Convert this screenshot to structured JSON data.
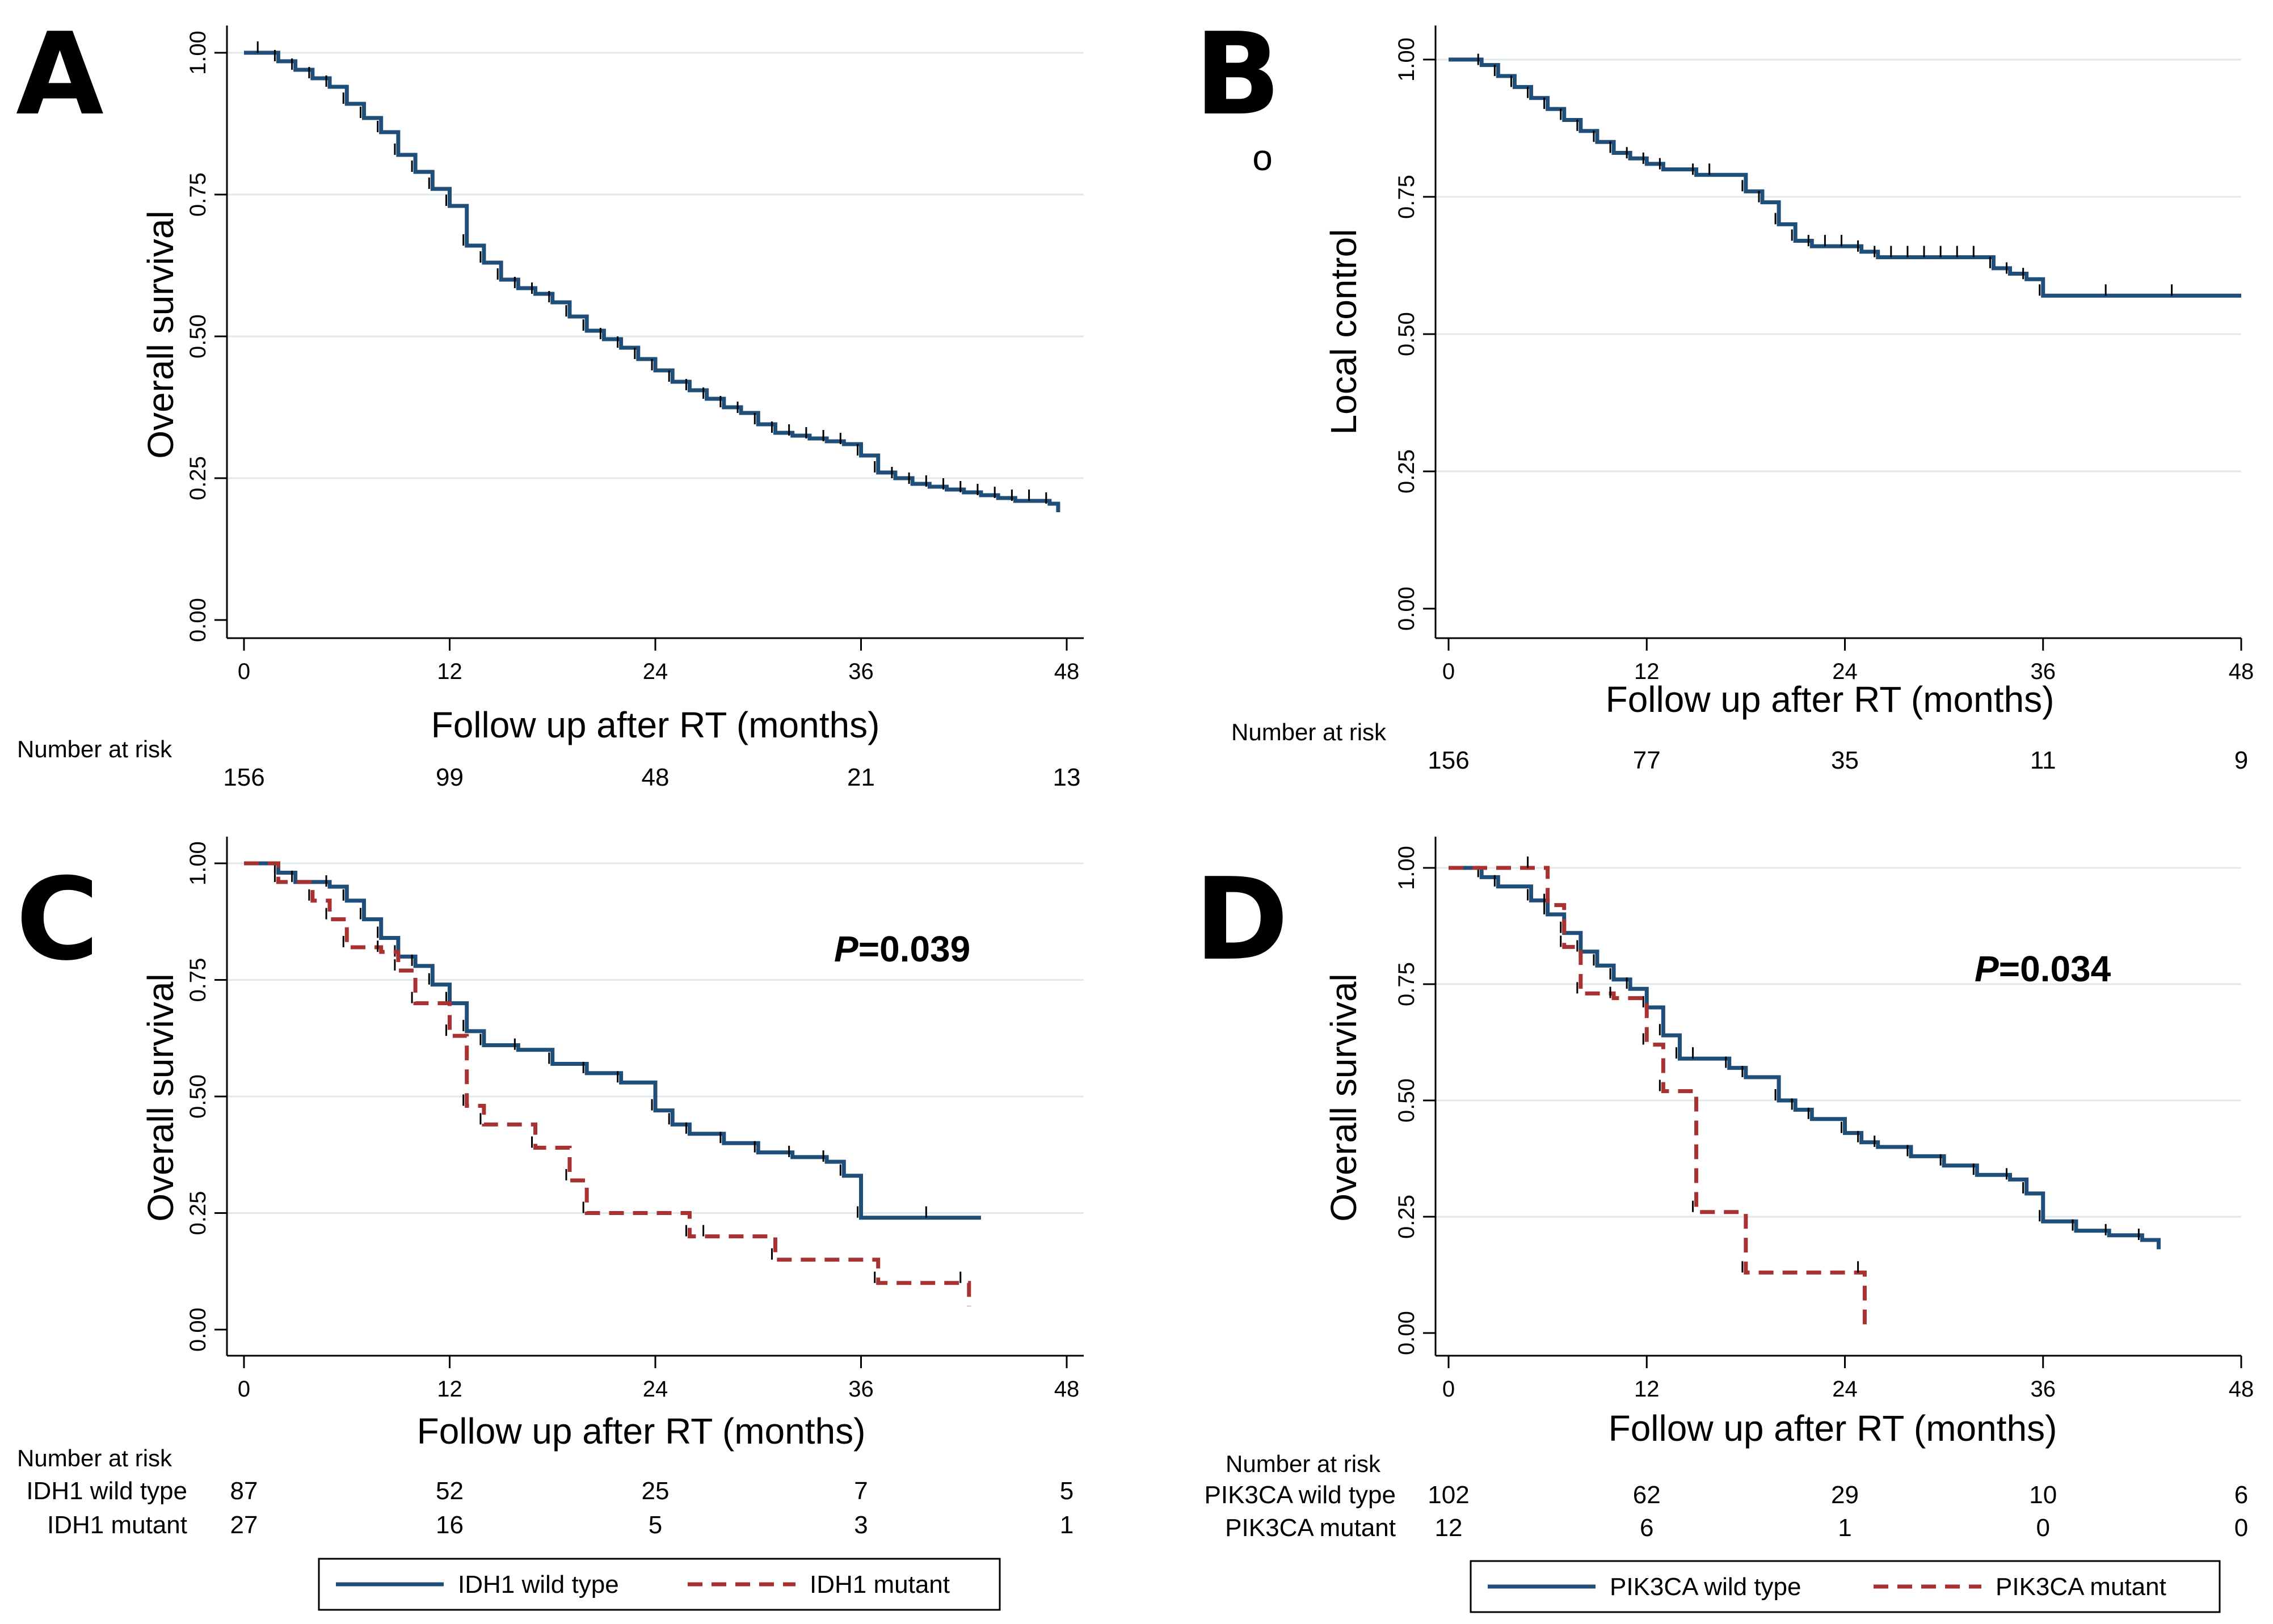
{
  "colors": {
    "wild": "#1f4e79",
    "mutant": "#a83232",
    "grid": "#dfe9e9",
    "axis": "#000000"
  },
  "chart_data": [
    {
      "id": "A",
      "panel_letter": "A",
      "type": "line",
      "subtype": "kaplan-meier",
      "xlabel": "Follow up after RT (months)",
      "ylabel": "Overall survival",
      "xlim": [
        0,
        48
      ],
      "ylim": [
        0,
        1
      ],
      "x_ticks": [
        "0",
        "12",
        "24",
        "36",
        "48"
      ],
      "y_ticks": [
        "0.00",
        "0.25",
        "0.50",
        "0.75",
        "1.00"
      ],
      "grid": true,
      "risk_title": "Number at risk",
      "risk_rows": [
        {
          "label": "",
          "values": [
            "156",
            "99",
            "48",
            "21",
            "13"
          ]
        }
      ],
      "series": [
        {
          "name": "Overall",
          "style": "solid",
          "color": "#1f4e79",
          "x": [
            0,
            1,
            2,
            3,
            4,
            5,
            6,
            7,
            8,
            9,
            10,
            11,
            12,
            13,
            14,
            15,
            16,
            17,
            18,
            19,
            20,
            21,
            22,
            23,
            24,
            25,
            26,
            27,
            28,
            29,
            30,
            31,
            32,
            33,
            34,
            35,
            36,
            37,
            38,
            39,
            40,
            41,
            42,
            43,
            44,
            45,
            46,
            47,
            47.5
          ],
          "y": [
            1.0,
            1.0,
            0.985,
            0.97,
            0.955,
            0.94,
            0.91,
            0.885,
            0.86,
            0.82,
            0.79,
            0.76,
            0.73,
            0.66,
            0.63,
            0.6,
            0.585,
            0.575,
            0.56,
            0.535,
            0.51,
            0.495,
            0.48,
            0.46,
            0.44,
            0.42,
            0.405,
            0.39,
            0.375,
            0.365,
            0.345,
            0.33,
            0.325,
            0.32,
            0.315,
            0.31,
            0.29,
            0.26,
            0.25,
            0.24,
            0.235,
            0.23,
            0.225,
            0.22,
            0.215,
            0.21,
            0.21,
            0.205,
            0.19
          ]
        }
      ]
    },
    {
      "id": "B",
      "panel_letter": "B",
      "type": "line",
      "subtype": "kaplan-meier",
      "xlabel": "Follow up after RT (months)",
      "ylabel": "Local control",
      "xlim": [
        0,
        48
      ],
      "ylim": [
        0,
        1
      ],
      "x_ticks": [
        "0",
        "12",
        "24",
        "36",
        "48"
      ],
      "y_ticks": [
        "0.00",
        "0.25",
        "0.50",
        "0.75",
        "1.00"
      ],
      "grid": true,
      "annotation": "o",
      "risk_title": "Number at risk",
      "risk_rows": [
        {
          "label": "",
          "values": [
            "156",
            "77",
            "35",
            "11",
            "9"
          ]
        }
      ],
      "series": [
        {
          "name": "Local control",
          "style": "solid",
          "color": "#1f4e79",
          "x": [
            0,
            2,
            3,
            4,
            5,
            6,
            7,
            8,
            9,
            10,
            11,
            12,
            13,
            15,
            16,
            18,
            19,
            20,
            21,
            22,
            23,
            24,
            25,
            26,
            27,
            28,
            29,
            30,
            31,
            32,
            33,
            34,
            35,
            36,
            40,
            44,
            48
          ],
          "y": [
            1.0,
            0.99,
            0.97,
            0.95,
            0.93,
            0.91,
            0.89,
            0.87,
            0.85,
            0.83,
            0.82,
            0.81,
            0.8,
            0.79,
            0.79,
            0.76,
            0.74,
            0.7,
            0.67,
            0.66,
            0.66,
            0.66,
            0.65,
            0.64,
            0.64,
            0.64,
            0.64,
            0.64,
            0.64,
            0.64,
            0.62,
            0.61,
            0.6,
            0.57,
            0.57,
            0.57,
            0.57
          ]
        }
      ]
    },
    {
      "id": "C",
      "panel_letter": "C",
      "type": "line",
      "subtype": "kaplan-meier",
      "xlabel": "Follow up after RT (months)",
      "ylabel": "Overall survival",
      "xlim": [
        0,
        48
      ],
      "ylim": [
        0,
        1
      ],
      "x_ticks": [
        "0",
        "12",
        "24",
        "36",
        "48"
      ],
      "y_ticks": [
        "0.00",
        "0.25",
        "0.50",
        "0.75",
        "1.00"
      ],
      "grid": true,
      "p_value": {
        "label": "P",
        "text": "=0.039"
      },
      "risk_title": "Number at risk",
      "risk_rows": [
        {
          "label": "IDH1 wild type",
          "values": [
            "87",
            "52",
            "25",
            "7",
            "5"
          ]
        },
        {
          "label": "IDH1 mutant",
          "values": [
            "27",
            "16",
            "5",
            "3",
            "1"
          ]
        }
      ],
      "legend": [
        "IDH1 wild type",
        "IDH1 mutant"
      ],
      "series": [
        {
          "name": "IDH1 wild type",
          "style": "solid",
          "color": "#1f4e79",
          "x": [
            0,
            2,
            3,
            5,
            6,
            7,
            8,
            9,
            10,
            11,
            12,
            13,
            14,
            16,
            18,
            20,
            22,
            24,
            25,
            26,
            28,
            30,
            32,
            34,
            35,
            36,
            40,
            43
          ],
          "y": [
            1.0,
            0.98,
            0.96,
            0.95,
            0.92,
            0.88,
            0.84,
            0.8,
            0.78,
            0.74,
            0.7,
            0.64,
            0.61,
            0.6,
            0.57,
            0.55,
            0.53,
            0.47,
            0.44,
            0.42,
            0.4,
            0.38,
            0.37,
            0.36,
            0.33,
            0.24,
            0.24,
            0.24
          ]
        },
        {
          "name": "IDH1 mutant",
          "style": "dashed",
          "color": "#a83232",
          "x": [
            0,
            2,
            4,
            5,
            6,
            8,
            9,
            10,
            12,
            13,
            14,
            17,
            19,
            20,
            26,
            27,
            31,
            37,
            42,
            42.3
          ],
          "y": [
            1.0,
            0.96,
            0.92,
            0.88,
            0.82,
            0.81,
            0.77,
            0.7,
            0.63,
            0.48,
            0.44,
            0.39,
            0.32,
            0.25,
            0.2,
            0.2,
            0.15,
            0.1,
            0.1,
            0.05
          ]
        }
      ]
    },
    {
      "id": "D",
      "panel_letter": "D",
      "type": "line",
      "subtype": "kaplan-meier",
      "xlabel": "Follow up after RT (months)",
      "ylabel": "Overall survival",
      "xlim": [
        0,
        48
      ],
      "ylim": [
        0,
        1
      ],
      "x_ticks": [
        "0",
        "12",
        "24",
        "36",
        "48"
      ],
      "y_ticks": [
        "0.00",
        "0.25",
        "0.50",
        "0.75",
        "1.00"
      ],
      "grid": true,
      "p_value": {
        "label": "P",
        "text": "=0.034"
      },
      "risk_title": "Number at risk",
      "risk_rows": [
        {
          "label": "PIK3CA wild type",
          "values": [
            "102",
            "62",
            "29",
            "10",
            "6"
          ]
        },
        {
          "label": "PIK3CA mutant",
          "values": [
            "12",
            "6",
            "1",
            "0",
            "0"
          ]
        }
      ],
      "legend": [
        "PIK3CA wild type",
        "PIK3CA mutant"
      ],
      "series": [
        {
          "name": "PIK3CA wild type",
          "style": "solid",
          "color": "#1f4e79",
          "x": [
            0,
            2,
            3,
            5,
            6,
            7,
            8,
            9,
            10,
            11,
            12,
            13,
            14,
            15,
            17,
            18,
            20,
            21,
            22,
            24,
            25,
            26,
            28,
            30,
            32,
            34,
            35,
            36,
            38,
            40,
            42,
            43
          ],
          "y": [
            1.0,
            0.98,
            0.96,
            0.93,
            0.9,
            0.86,
            0.82,
            0.79,
            0.76,
            0.74,
            0.7,
            0.64,
            0.59,
            0.59,
            0.57,
            0.55,
            0.5,
            0.48,
            0.46,
            0.43,
            0.41,
            0.4,
            0.38,
            0.36,
            0.34,
            0.33,
            0.3,
            0.24,
            0.22,
            0.21,
            0.2,
            0.18
          ]
        },
        {
          "name": "PIK3CA mutant",
          "style": "dashed",
          "color": "#a83232",
          "x": [
            0,
            5,
            6,
            7,
            8,
            10,
            12,
            13,
            15,
            18,
            25,
            25.2
          ],
          "y": [
            1.0,
            1.0,
            0.92,
            0.83,
            0.73,
            0.72,
            0.62,
            0.52,
            0.26,
            0.13,
            0.13,
            0.0
          ]
        }
      ]
    }
  ]
}
